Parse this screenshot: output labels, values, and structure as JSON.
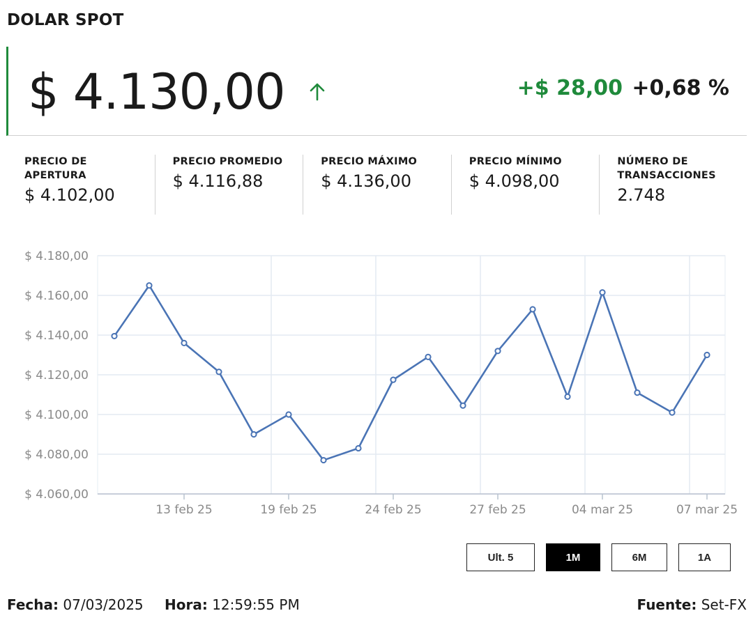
{
  "header": {
    "title": "DOLAR SPOT"
  },
  "price": {
    "value": "$ 4.130,00",
    "trend_icon": "arrow-up-icon",
    "change_abs": "+$ 28,00",
    "change_pct": "+0,68 %",
    "up_color": "#1f8a3b"
  },
  "stats": [
    {
      "label": "PRECIO DE APERTURA",
      "value": "$ 4.102,00"
    },
    {
      "label": "PRECIO PROMEDIO",
      "value": "$ 4.116,88"
    },
    {
      "label": "PRECIO MÁXIMO",
      "value": "$ 4.136,00"
    },
    {
      "label": "PRECIO MÍNIMO",
      "value": "$ 4.098,00"
    },
    {
      "label": "NÚMERO DE TRANSACCIONES",
      "value": "2.748"
    }
  ],
  "chart_data": {
    "type": "line",
    "series": [
      {
        "values": [
          4139.5,
          4165,
          4136,
          4121.5,
          4090,
          4100,
          4077,
          4083,
          4117.5,
          4129,
          4104.5,
          4132,
          4153,
          4109,
          4161.5,
          4111,
          4101,
          4130
        ]
      }
    ],
    "x_labels": [
      "13 feb 25",
      "19 feb 25",
      "24 feb 25",
      "27 feb 25",
      "04 mar 25",
      "07 mar 25"
    ],
    "x_label_indices": [
      2,
      5,
      8,
      11,
      14,
      17
    ],
    "yticks": [
      "$ 4.060,00",
      "$ 4.080,00",
      "$ 4.100,00",
      "$ 4.120,00",
      "$ 4.140,00",
      "$ 4.160,00",
      "$ 4.180,00"
    ],
    "ylim": [
      4060,
      4180
    ],
    "grid": true,
    "line_color": "#4a74b5"
  },
  "range_buttons": [
    {
      "label": "Ult. 5",
      "active": false
    },
    {
      "label": "1M",
      "active": true
    },
    {
      "label": "6M",
      "active": false
    },
    {
      "label": "1A",
      "active": false
    }
  ],
  "footer": {
    "fecha_label": "Fecha:",
    "fecha": "07/03/2025",
    "hora_label": "Hora:",
    "hora": "12:59:55 PM",
    "fuente_label": "Fuente:",
    "fuente": "Set-FX"
  }
}
